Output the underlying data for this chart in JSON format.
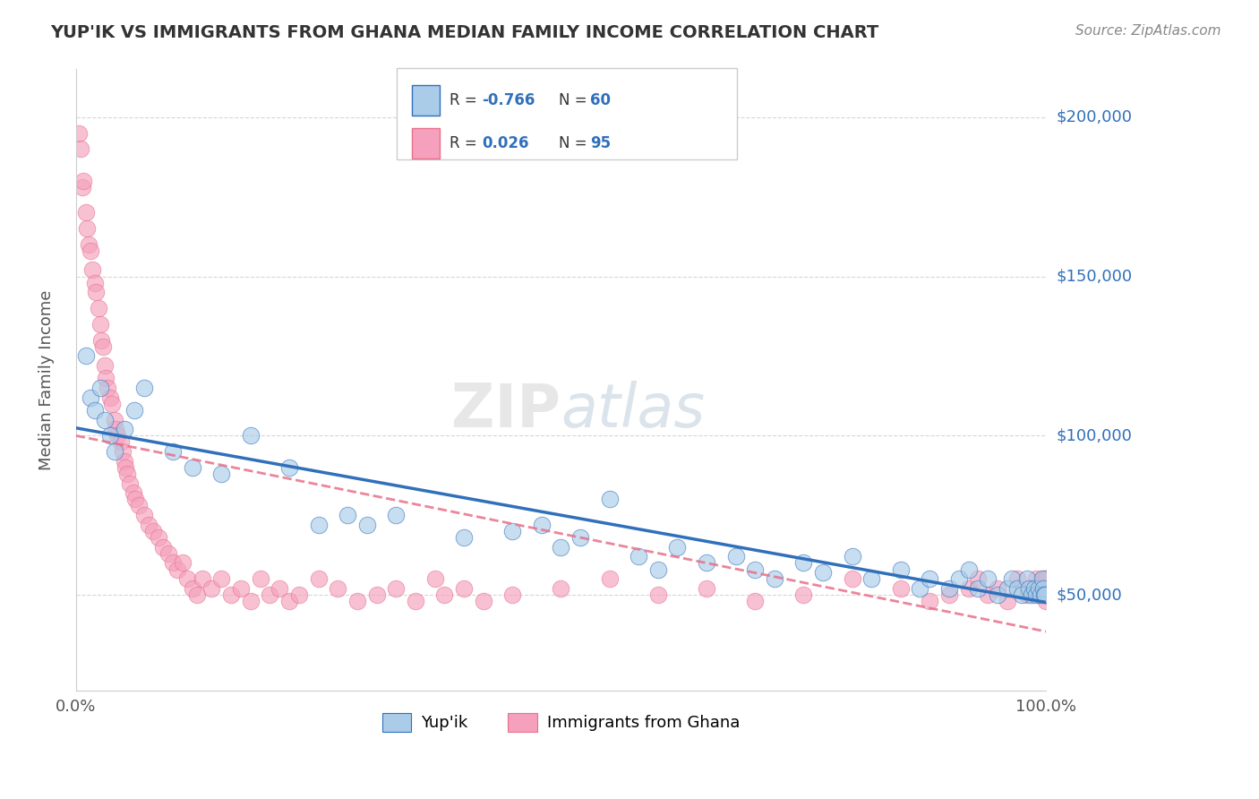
{
  "title": "YUP'IK VS IMMIGRANTS FROM GHANA MEDIAN FAMILY INCOME CORRELATION CHART",
  "source_text": "Source: ZipAtlas.com",
  "ylabel": "Median Family Income",
  "xlim": [
    0.0,
    100.0
  ],
  "ylim": [
    20000,
    215000
  ],
  "yticks": [
    50000,
    100000,
    150000,
    200000
  ],
  "ytick_labels": [
    "$50,000",
    "$100,000",
    "$150,000",
    "$200,000"
  ],
  "xticks": [
    0.0,
    10.0,
    20.0,
    30.0,
    40.0,
    50.0,
    60.0,
    70.0,
    80.0,
    90.0,
    100.0
  ],
  "color_blue": "#aacce8",
  "color_pink": "#f5a0bc",
  "color_blue_dark": "#3070bb",
  "color_pink_dark": "#e8708a",
  "color_title": "#333333",
  "background_color": "#ffffff",
  "watermark": "ZIPatlas",
  "yup_ik_x": [
    1.0,
    1.5,
    2.0,
    2.5,
    3.0,
    3.5,
    4.0,
    5.0,
    6.0,
    7.0,
    10.0,
    12.0,
    15.0,
    18.0,
    22.0,
    25.0,
    28.0,
    30.0,
    33.0,
    40.0,
    45.0,
    48.0,
    50.0,
    52.0,
    55.0,
    58.0,
    60.0,
    62.0,
    65.0,
    68.0,
    70.0,
    72.0,
    75.0,
    77.0,
    80.0,
    82.0,
    85.0,
    87.0,
    88.0,
    90.0,
    91.0,
    92.0,
    93.0,
    94.0,
    95.0,
    96.0,
    96.5,
    97.0,
    97.5,
    98.0,
    98.2,
    98.5,
    98.8,
    99.0,
    99.2,
    99.4,
    99.6,
    99.7,
    99.8,
    99.9
  ],
  "yup_ik_y": [
    125000,
    112000,
    108000,
    115000,
    105000,
    100000,
    95000,
    102000,
    108000,
    115000,
    95000,
    90000,
    88000,
    100000,
    90000,
    72000,
    75000,
    72000,
    75000,
    68000,
    70000,
    72000,
    65000,
    68000,
    80000,
    62000,
    58000,
    65000,
    60000,
    62000,
    58000,
    55000,
    60000,
    57000,
    62000,
    55000,
    58000,
    52000,
    55000,
    52000,
    55000,
    58000,
    52000,
    55000,
    50000,
    52000,
    55000,
    52000,
    50000,
    55000,
    52000,
    50000,
    52000,
    50000,
    52000,
    50000,
    55000,
    52000,
    50000,
    50000
  ],
  "ghana_x": [
    0.3,
    0.5,
    0.7,
    0.8,
    1.0,
    1.1,
    1.3,
    1.5,
    1.7,
    2.0,
    2.1,
    2.3,
    2.5,
    2.6,
    2.8,
    3.0,
    3.1,
    3.3,
    3.5,
    3.7,
    4.0,
    4.1,
    4.3,
    4.6,
    4.8,
    5.0,
    5.1,
    5.3,
    5.6,
    5.9,
    6.1,
    6.5,
    7.0,
    7.5,
    8.0,
    8.5,
    9.0,
    9.5,
    10.0,
    10.5,
    11.0,
    11.5,
    12.0,
    12.5,
    13.0,
    14.0,
    15.0,
    16.0,
    17.0,
    18.0,
    19.0,
    20.0,
    21.0,
    22.0,
    23.0,
    25.0,
    27.0,
    29.0,
    31.0,
    33.0,
    35.0,
    37.0,
    38.0,
    40.0,
    42.0,
    45.0,
    50.0,
    55.0,
    60.0,
    65.0,
    70.0,
    75.0,
    80.0,
    85.0,
    88.0,
    90.0,
    92.0,
    93.0,
    94.0,
    95.0,
    96.0,
    97.0,
    98.0,
    98.5,
    99.0,
    99.2,
    99.5,
    99.7,
    99.8,
    99.9,
    100.0,
    100.0,
    100.0,
    100.0,
    100.0
  ],
  "ghana_y": [
    195000,
    190000,
    178000,
    180000,
    170000,
    165000,
    160000,
    158000,
    152000,
    148000,
    145000,
    140000,
    135000,
    130000,
    128000,
    122000,
    118000,
    115000,
    112000,
    110000,
    105000,
    102000,
    100000,
    98000,
    95000,
    92000,
    90000,
    88000,
    85000,
    82000,
    80000,
    78000,
    75000,
    72000,
    70000,
    68000,
    65000,
    63000,
    60000,
    58000,
    60000,
    55000,
    52000,
    50000,
    55000,
    52000,
    55000,
    50000,
    52000,
    48000,
    55000,
    50000,
    52000,
    48000,
    50000,
    55000,
    52000,
    48000,
    50000,
    52000,
    48000,
    55000,
    50000,
    52000,
    48000,
    50000,
    52000,
    55000,
    50000,
    52000,
    48000,
    50000,
    55000,
    52000,
    48000,
    50000,
    52000,
    55000,
    50000,
    52000,
    48000,
    55000,
    50000,
    52000,
    55000,
    50000,
    52000,
    55000,
    50000,
    52000,
    48000,
    55000,
    50000,
    52000,
    55000
  ]
}
